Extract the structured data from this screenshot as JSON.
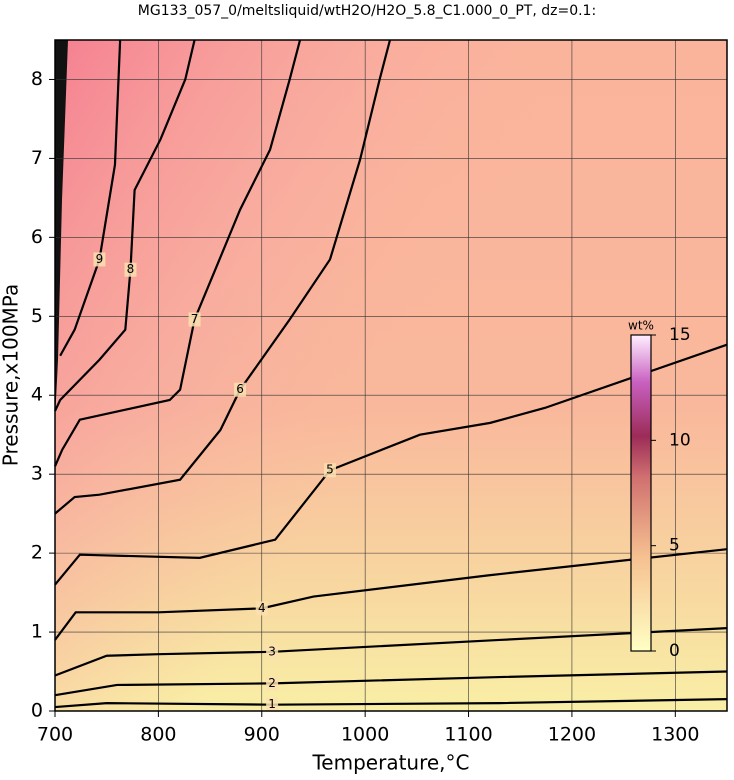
{
  "chart_data": {
    "type": "contour",
    "title": "MG133_057_0/meltsliquid/wtH2O/H2O_5.8_C1.000_0_PT, dz=0.1:",
    "x_label": "Temperature,°C",
    "y_label": "Pressure,x100MPa",
    "xlim": [
      700,
      1350
    ],
    "ylim": [
      0,
      8.5
    ],
    "xticks": [
      700,
      800,
      900,
      1000,
      1100,
      1200,
      1300
    ],
    "yticks": [
      0,
      1,
      2,
      3,
      4,
      5,
      6,
      7,
      8
    ],
    "grid": true,
    "color": "#000000",
    "contours": [
      {
        "level": 1,
        "x": [
          700,
          750,
          910,
          1130,
          1350
        ],
        "y": [
          0.05,
          0.1,
          0.08,
          0.1,
          0.15
        ]
      },
      {
        "level": 2,
        "x": [
          700,
          760,
          910,
          1130,
          1350
        ],
        "y": [
          0.2,
          0.33,
          0.35,
          0.43,
          0.5
        ]
      },
      {
        "level": 3,
        "x": [
          700,
          750,
          800,
          910,
          1130,
          1350
        ],
        "y": [
          0.45,
          0.7,
          0.72,
          0.75,
          0.9,
          1.05
        ]
      },
      {
        "level": 4,
        "x": [
          700,
          720,
          800,
          900,
          950,
          1120,
          1350
        ],
        "y": [
          0.9,
          1.25,
          1.25,
          1.3,
          1.45,
          1.72,
          2.05
        ]
      },
      {
        "level": 5,
        "x": [
          700,
          724,
          840,
          913,
          966,
          1053,
          1121,
          1174,
          1350
        ],
        "y": [
          1.6,
          1.98,
          1.94,
          2.17,
          3.05,
          3.5,
          3.65,
          3.84,
          4.64
        ]
      },
      {
        "level": 6,
        "x": [
          700,
          719,
          743,
          821,
          860,
          879,
          927,
          966,
          995,
          1014,
          1024
        ],
        "y": [
          2.5,
          2.71,
          2.74,
          2.93,
          3.56,
          4.07,
          4.96,
          5.72,
          6.98,
          8.0,
          8.5
        ]
      },
      {
        "level": 7,
        "x": [
          700,
          707,
          724,
          811,
          821,
          835,
          855,
          879,
          908,
          927,
          937
        ],
        "y": [
          3.1,
          3.31,
          3.69,
          3.94,
          4.07,
          4.96,
          5.59,
          6.35,
          7.11,
          8.0,
          8.5
        ]
      },
      {
        "level": 8,
        "x": [
          700,
          705,
          743,
          768,
          773,
          777,
          802,
          826,
          835
        ],
        "y": [
          3.8,
          3.94,
          4.45,
          4.83,
          5.59,
          6.6,
          7.24,
          8.0,
          8.5
        ]
      },
      {
        "level": 9,
        "x": [
          705,
          719,
          743,
          758,
          763
        ],
        "y": [
          4.5,
          4.83,
          5.72,
          6.92,
          8.5
        ]
      }
    ],
    "colorbar": {
      "label": "wt%",
      "lim": [
        0,
        15
      ],
      "ticks": [
        0,
        5,
        10,
        15
      ]
    }
  }
}
